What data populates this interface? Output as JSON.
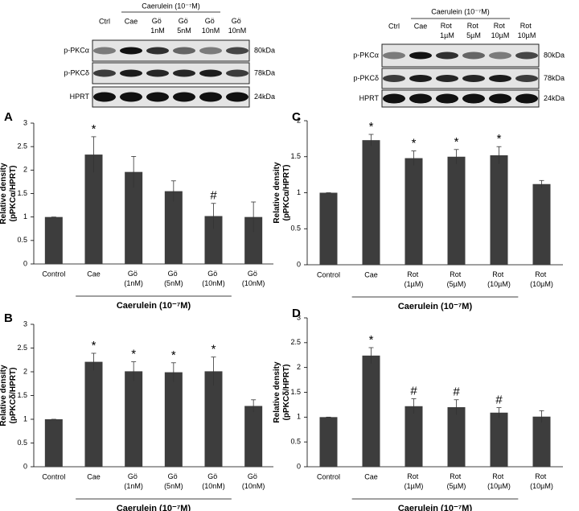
{
  "blots": [
    {
      "group_label": "Caerulein (10⁻⁷M)",
      "lanes": [
        "Ctrl",
        "Cae",
        "Gö 1nM",
        "Gö 5nM",
        "Gö 10nM",
        "Gö 10nM"
      ],
      "rows": [
        {
          "label": "p-PKCα",
          "size": "80kDa"
        },
        {
          "label": "p-PKCδ",
          "size": "78kDa"
        },
        {
          "label": "HPRT",
          "size": "24kDa"
        }
      ]
    },
    {
      "group_label": "Caerulein (10⁻⁷M)",
      "lanes": [
        "Ctrl",
        "Cae",
        "Rot 1µM",
        "Rot 5µM",
        "Rot 10µM",
        "Rot 10µM"
      ],
      "rows": [
        {
          "label": "p-PKCα",
          "size": "80kDa"
        },
        {
          "label": "p-PKCδ",
          "size": "78kDa"
        },
        {
          "label": "HPRT",
          "size": "24kDa"
        }
      ]
    }
  ],
  "chart_data": [
    {
      "type": "bar",
      "panel": "A",
      "ylabel": [
        "Relative density",
        "(pPKCα/HPRT)"
      ],
      "xlabel": "Caerulein (10⁻⁷M)",
      "categories": [
        "Control",
        "Cae",
        "Gö (1nM)",
        "Gö (5nM)",
        "Gö (10nM)",
        "Gö (10nM)"
      ],
      "values": [
        1,
        2.33,
        1.96,
        1.55,
        1.02,
        1.0
      ],
      "errors": [
        0,
        0.38,
        0.33,
        0.22,
        0.27,
        0.32
      ],
      "markers": [
        null,
        "*",
        null,
        null,
        "#",
        null
      ],
      "color": "#3d3d3d",
      "ylim": [
        0,
        3
      ],
      "yticks": [
        0,
        0.5,
        1,
        1.5,
        2,
        2.5,
        3
      ]
    },
    {
      "type": "bar",
      "panel": "C",
      "ylabel": [
        "Relative density",
        "(pPKCα/HPRT)"
      ],
      "xlabel": "Caerulein (10⁻⁷M)",
      "categories": [
        "Control",
        "Cae",
        "Rot (1µM)",
        "Rot (5µM)",
        "Rot (10µM)",
        "Rot (10µM)"
      ],
      "values": [
        1,
        1.73,
        1.48,
        1.5,
        1.52,
        1.12
      ],
      "errors": [
        0,
        0.08,
        0.1,
        0.1,
        0.12,
        0.05
      ],
      "markers": [
        null,
        "*",
        "*",
        "*",
        "*",
        null
      ],
      "color": "#3d3d3d",
      "ylim": [
        0,
        2
      ],
      "yticks": [
        0,
        0.5,
        1,
        1.5,
        2
      ]
    },
    {
      "type": "bar",
      "panel": "B",
      "ylabel": [
        "Relative density",
        "(pPKCδ/HPRT)"
      ],
      "xlabel": "Caerulein (10⁻⁷M)",
      "categories": [
        "Control",
        "Cae",
        "Gö (1nM)",
        "Gö (5nM)",
        "Gö (10nM)",
        "Gö (10nM)"
      ],
      "values": [
        1,
        2.21,
        2.01,
        1.99,
        2.01,
        1.28
      ],
      "errors": [
        0,
        0.18,
        0.2,
        0.2,
        0.3,
        0.13
      ],
      "markers": [
        null,
        "*",
        "*",
        "*",
        "*",
        null
      ],
      "color": "#3d3d3d",
      "ylim": [
        0,
        3
      ],
      "yticks": [
        0,
        0.5,
        1,
        1.5,
        2,
        2.5,
        3
      ]
    },
    {
      "type": "bar",
      "panel": "D",
      "ylabel": [
        "Relative density",
        "(pPKCδ/HPRT)"
      ],
      "xlabel": "Caerulein (10⁻⁷M)",
      "categories": [
        "Control",
        "Cae",
        "Rot (1µM)",
        "Rot (5µM)",
        "Rot (10µM)",
        "Rot (10µM)"
      ],
      "values": [
        1,
        2.24,
        1.22,
        1.2,
        1.09,
        1.01
      ],
      "errors": [
        0,
        0.16,
        0.15,
        0.15,
        0.1,
        0.12
      ],
      "markers": [
        null,
        "*",
        "#",
        "#",
        "#",
        null
      ],
      "color": "#3d3d3d",
      "ylim": [
        0,
        3
      ],
      "yticks": [
        0,
        0.5,
        1,
        1.5,
        2,
        2.5,
        3
      ]
    }
  ]
}
